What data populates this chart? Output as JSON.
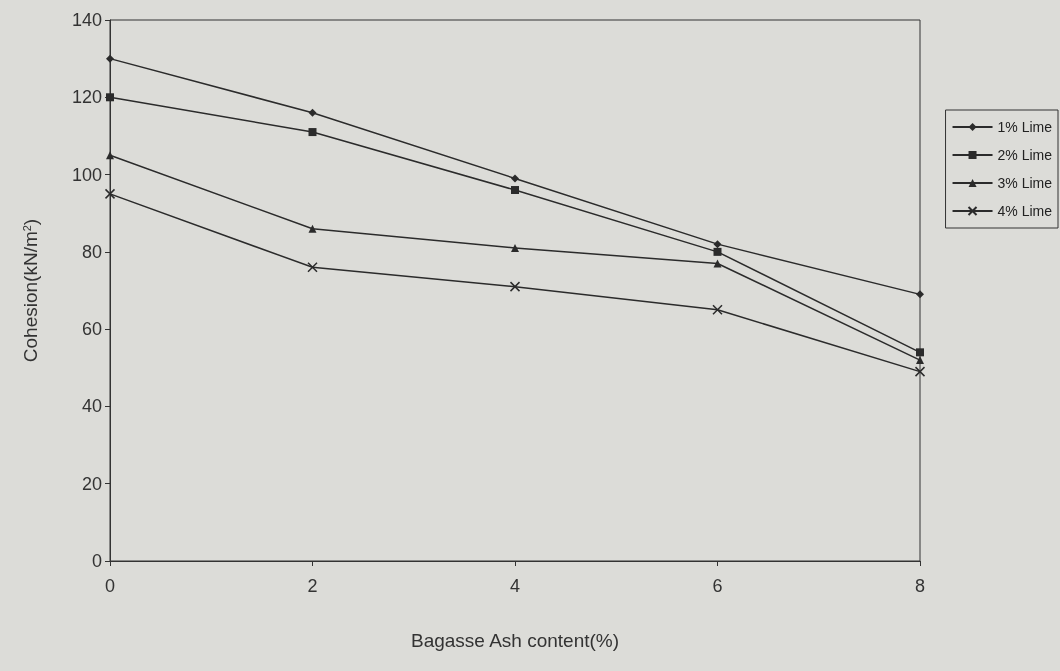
{
  "chart_data": {
    "type": "line",
    "xlabel": "Bagasse Ash content(%)",
    "ylabel": "Cohesion(kN/m$^{2}$)",
    "x": [
      0,
      2,
      4,
      6,
      8
    ],
    "series": [
      {
        "name": "1% Lime",
        "color": "#2b2b2b",
        "marker": "diamond",
        "values": [
          130,
          116,
          99,
          82,
          69
        ]
      },
      {
        "name": "2% Lime",
        "color": "#2b2b2b",
        "marker": "square",
        "values": [
          120,
          111,
          96,
          80,
          54
        ]
      },
      {
        "name": "3% Lime",
        "color": "#2b2b2b",
        "marker": "triangle",
        "values": [
          105,
          86,
          81,
          77,
          52
        ]
      },
      {
        "name": "4% Lime",
        "color": "#2b2b2b",
        "marker": "cross",
        "values": [
          95,
          76,
          71,
          65,
          49
        ]
      }
    ],
    "xlim": [
      0,
      8
    ],
    "xticks": [
      0,
      2,
      4,
      6,
      8
    ],
    "ylim": [
      0,
      140
    ],
    "yticks": [
      0,
      20,
      40,
      60,
      80,
      100,
      120,
      140
    ],
    "grid": false,
    "legend": "right",
    "line_style": "solid"
  }
}
